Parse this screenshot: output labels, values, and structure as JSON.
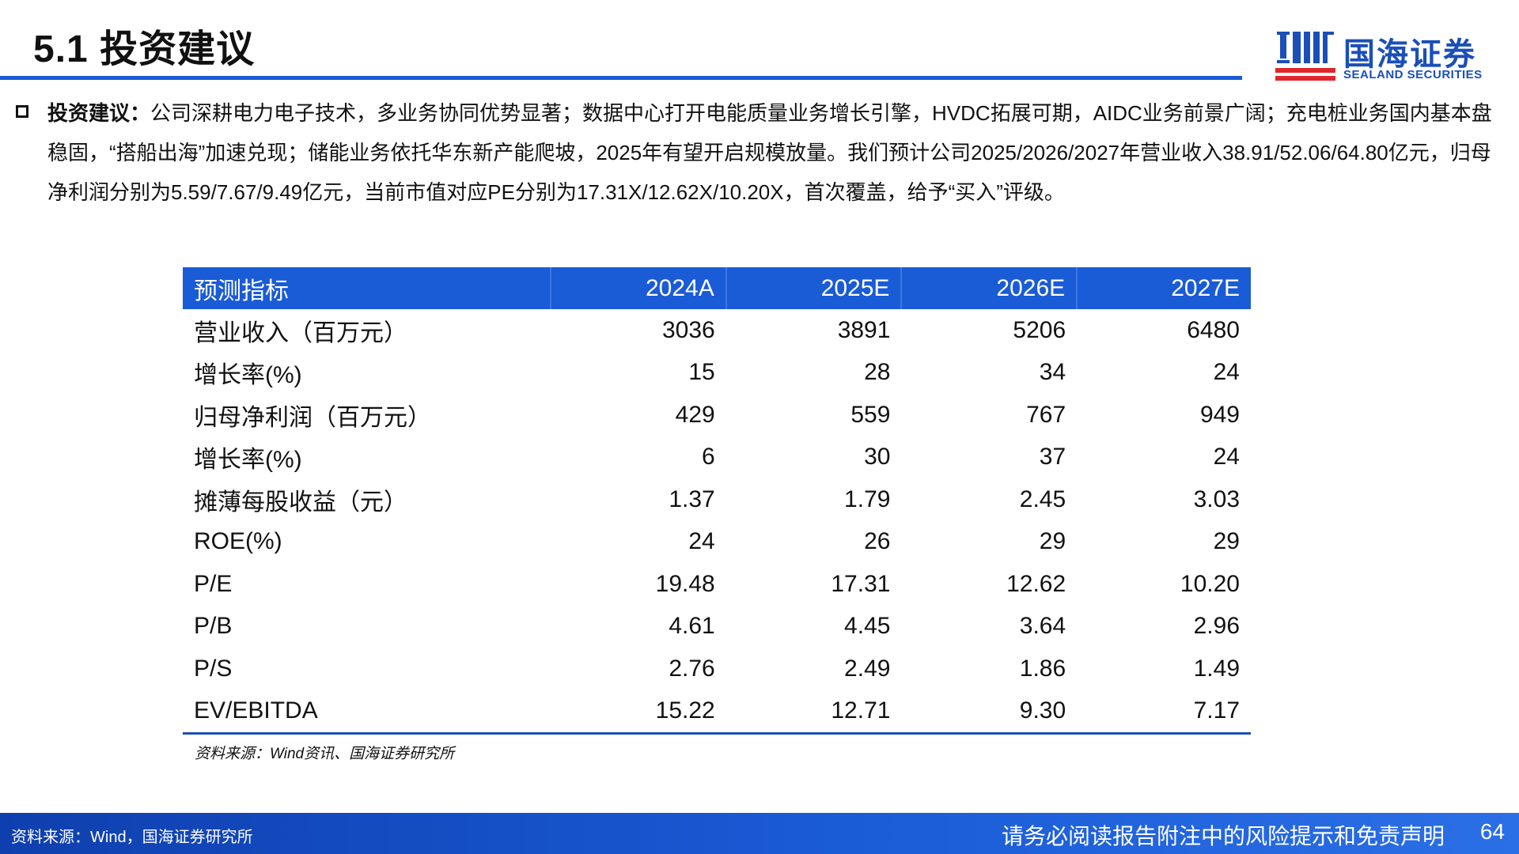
{
  "header": {
    "title": "5.1 投资建议",
    "logo_cn": "国海证券",
    "logo_en": "SEALAND SECURITIES"
  },
  "bullet": {
    "label": "投资建议：",
    "text": "公司深耕电力电子技术，多业务协同优势显著；数据中心打开电能质量业务增长引擎，HVDC拓展可期，AIDC业务前景广阔；充电桩业务国内基本盘稳固，“搭船出海”加速兑现；储能业务依托华东新产能爬坡，2025年有望开启规模放量。我们预计公司2025/2026/2027年营业收入38.91/52.06/64.80亿元，归母净利润分别为5.59/7.67/9.49亿元，当前市值对应PE分别为17.31X/12.62X/10.20X，首次覆盖，给予“买入”评级。"
  },
  "table": {
    "headers": [
      "预测指标",
      "2024A",
      "2025E",
      "2026E",
      "2027E"
    ],
    "rows": [
      [
        "营业收入（百万元）",
        "3036",
        "3891",
        "5206",
        "6480"
      ],
      [
        "增长率(%)",
        "15",
        "28",
        "34",
        "24"
      ],
      [
        "归母净利润（百万元）",
        "429",
        "559",
        "767",
        "949"
      ],
      [
        "增长率(%)",
        "6",
        "30",
        "37",
        "24"
      ],
      [
        "摊薄每股收益（元）",
        "1.37",
        "1.79",
        "2.45",
        "3.03"
      ],
      [
        "ROE(%)",
        "24",
        "26",
        "29",
        "29"
      ],
      [
        "P/E",
        "19.48",
        "17.31",
        "12.62",
        "10.20"
      ],
      [
        "P/B",
        "4.61",
        "4.45",
        "3.64",
        "2.96"
      ],
      [
        "P/S",
        "2.76",
        "2.49",
        "1.86",
        "1.49"
      ],
      [
        "EV/EBITDA",
        "15.22",
        "12.71",
        "9.30",
        "7.17"
      ]
    ]
  },
  "source_note": "资料来源：Wind资讯、国海证券研究所",
  "footer": {
    "left": "资料来源：Wind，国海证券研究所",
    "disclaimer": "请务必阅读报告附注中的风险提示和免责声明",
    "page": "64"
  },
  "colors": {
    "brand_blue": "#1a5bd6",
    "logo_red": "#e0262b"
  }
}
